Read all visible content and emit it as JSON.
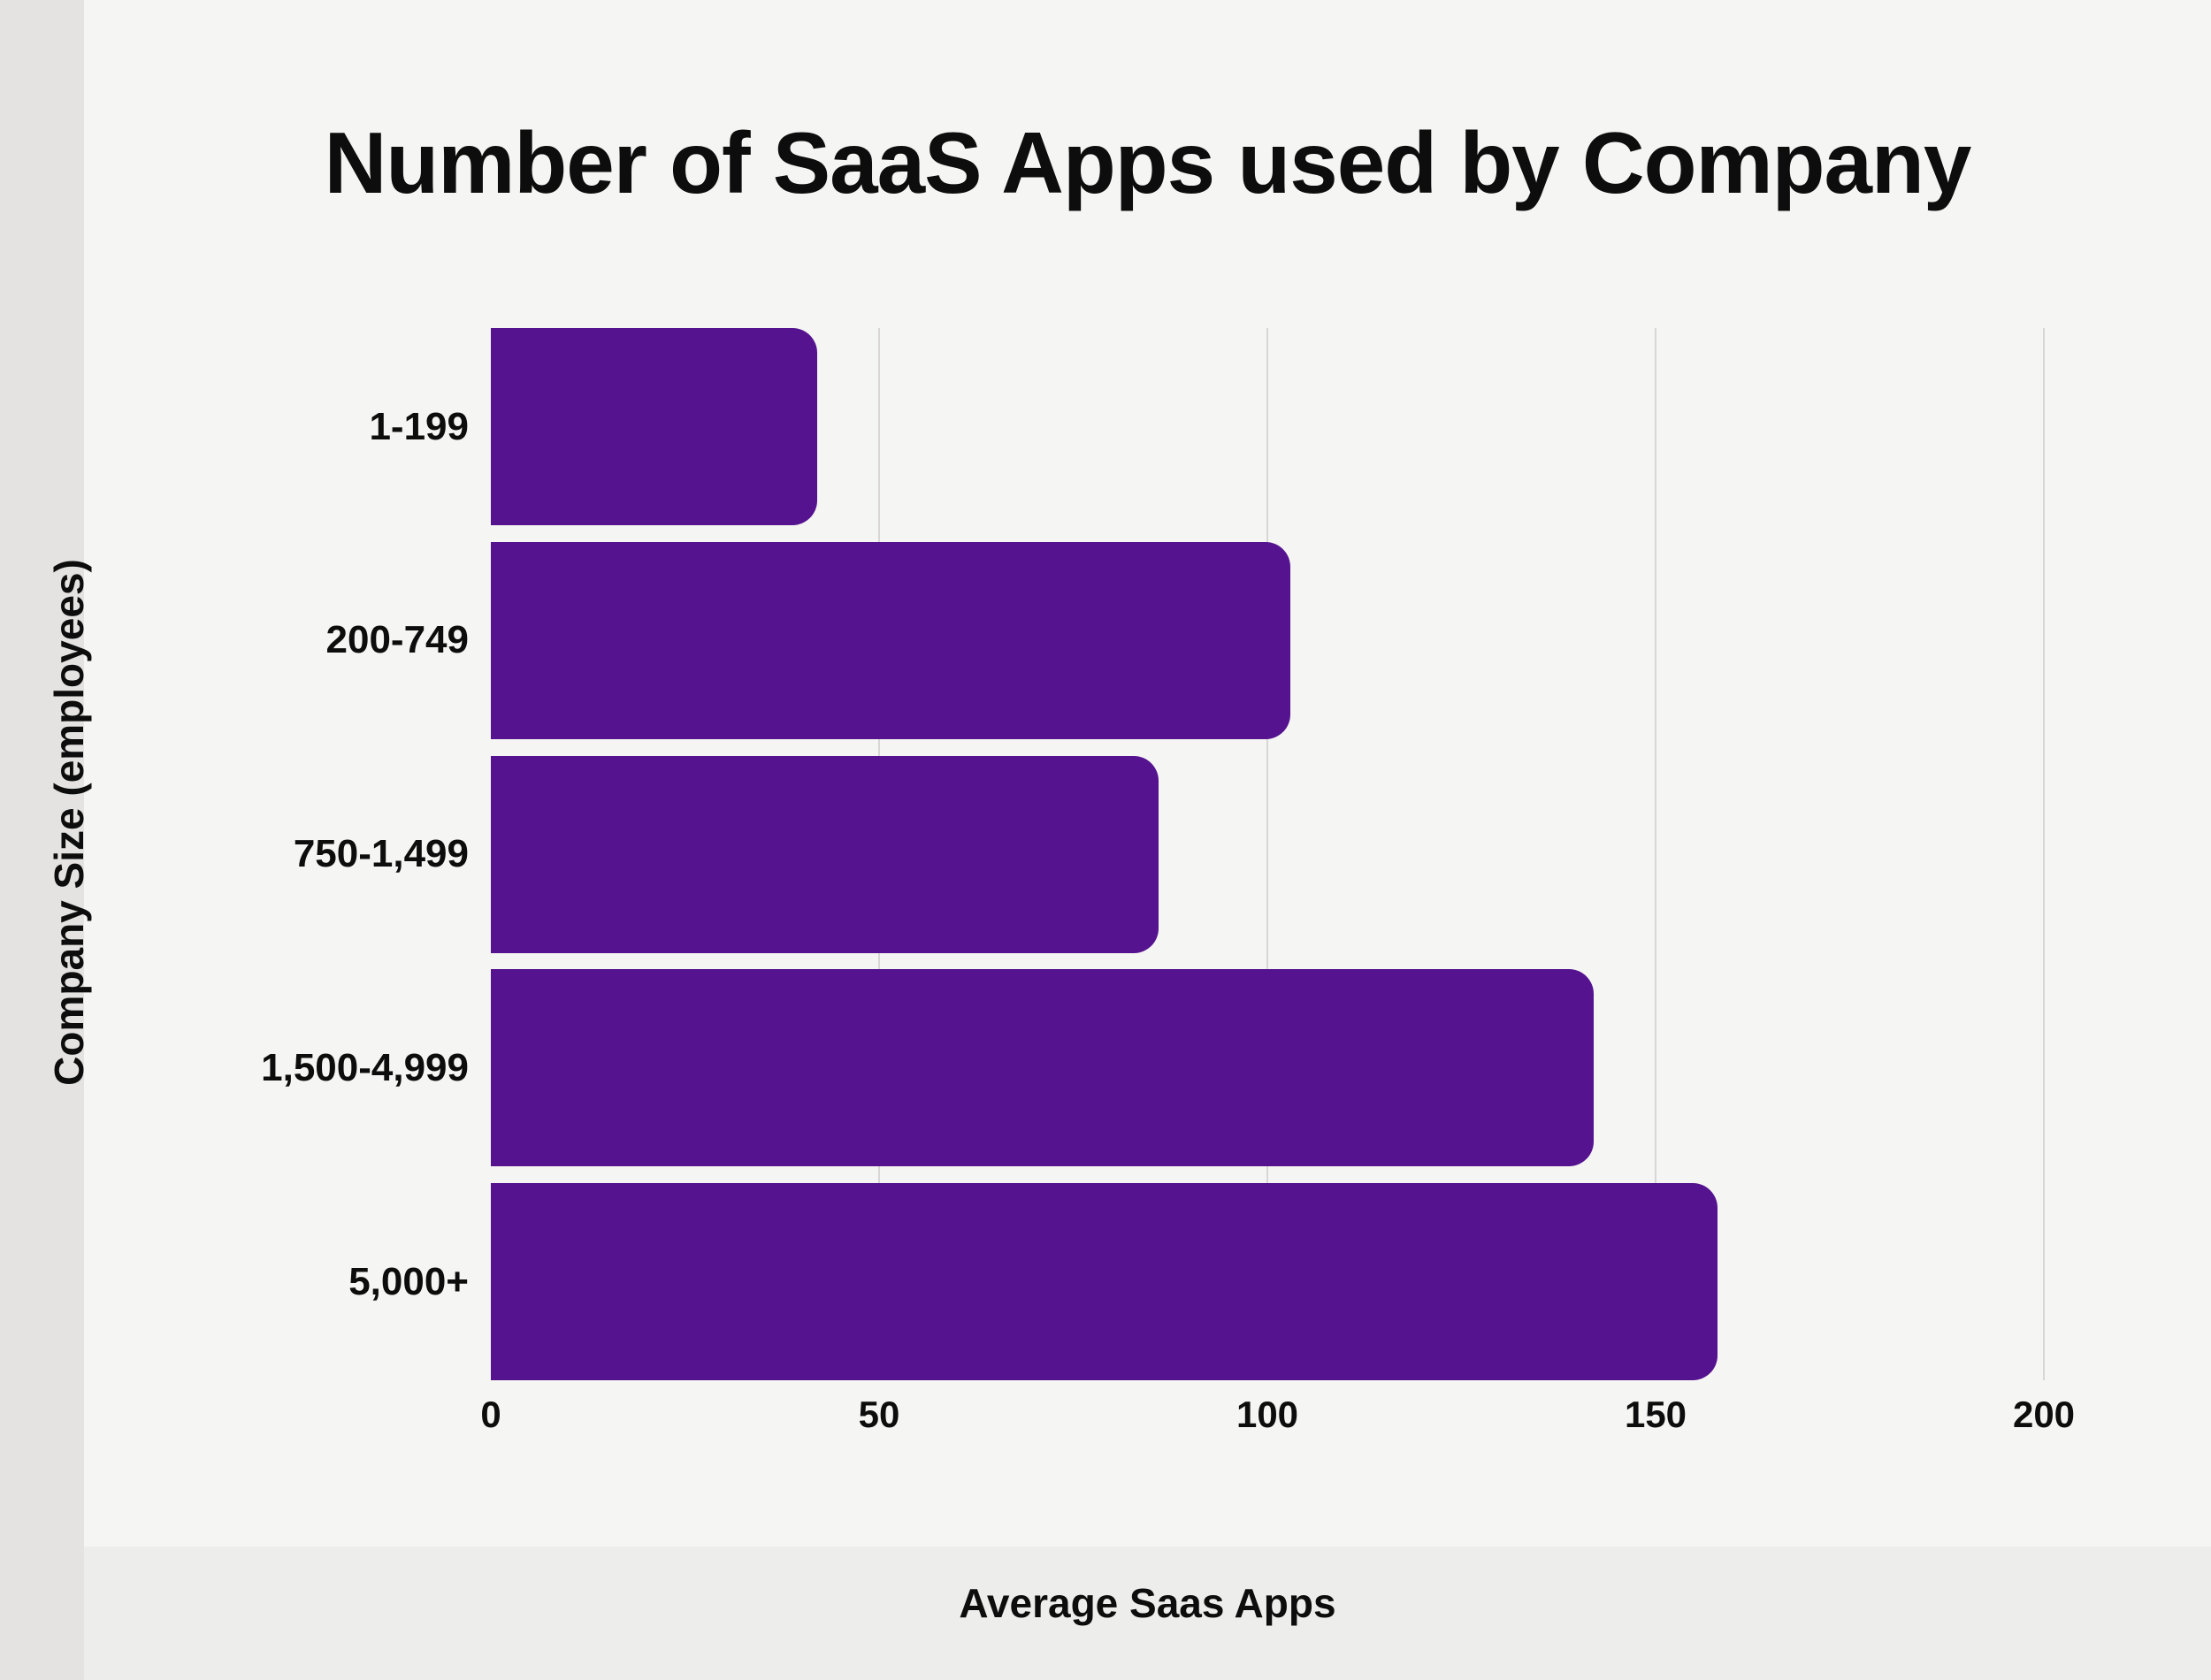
{
  "chart_data": {
    "type": "bar",
    "orientation": "horizontal",
    "title": "Number of SaaS Apps used by Company",
    "xlabel": "Average Saas Apps",
    "ylabel": "Company Size (employees)",
    "categories": [
      "1-199",
      "200-749",
      "750-1,499",
      "1,500-4,999",
      "5,000+"
    ],
    "values": [
      42,
      103,
      86,
      142,
      158
    ],
    "xlim": [
      0,
      200
    ],
    "xticks": [
      0,
      50,
      100,
      150,
      200
    ],
    "grid": "vertical gridlines at 50, 100, 150, 200",
    "legend_position": "none",
    "data_labels": "none"
  },
  "colors": {
    "background": "#f5f5f3",
    "left_strip": "#e4e3e2",
    "bottom_strip": "#ededeb",
    "gridline": "#d8d7d5",
    "bar": "#551390",
    "text": "#0d0d0d"
  }
}
